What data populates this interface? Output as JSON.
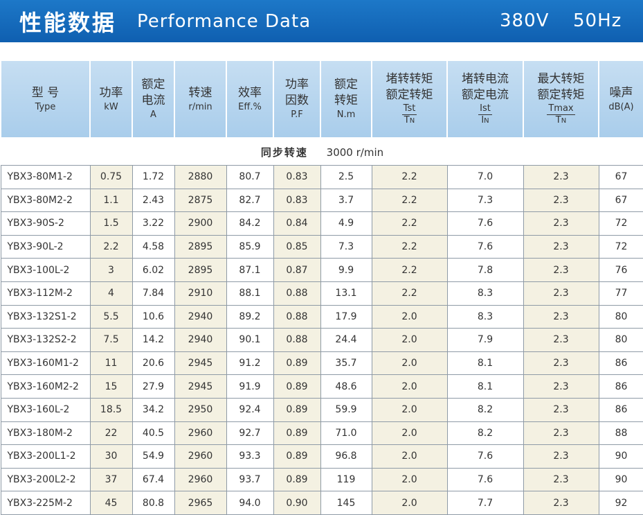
{
  "banner": {
    "title_cn": "性能数据",
    "title_en": "Performance Data",
    "voltage": "380V",
    "frequency": "50Hz"
  },
  "header": {
    "type_cn": "型  号",
    "type_en": "Type",
    "power_cn": "功率",
    "power_unit": "kW",
    "current_cn1": "额定",
    "current_cn2": "电流",
    "current_unit": "A",
    "speed_cn": "转速",
    "speed_unit": "r/min",
    "eff_cn": "效率",
    "eff_unit": "Eff.%",
    "pf_cn1": "功率",
    "pf_cn2": "因数",
    "pf_unit": "P.F",
    "torque_cn1": "额定",
    "torque_cn2": "转矩",
    "torque_unit": "N.m",
    "lrt_cn1": "堵转转矩",
    "lrt_cn2": "额定转矩",
    "lrt_num": "Tst",
    "lrt_den": "TN",
    "lrc_cn1": "堵转电流",
    "lrc_cn2": "额定电流",
    "lrc_num": "Ist",
    "lrc_den": "IN",
    "bdt_cn1": "最大转矩",
    "bdt_cn2": "额定转矩",
    "bdt_num": "Tmax",
    "bdt_den": "TN",
    "noise_cn": "噪声",
    "noise_unit": "dB(A)"
  },
  "section": {
    "label": "同步转速",
    "value": "3000 r/min"
  },
  "rows": [
    [
      "YBX3-80M1-2",
      "0.75",
      "1.72",
      "2880",
      "80.7",
      "0.83",
      "2.5",
      "2.2",
      "7.0",
      "2.3",
      "67"
    ],
    [
      "YBX3-80M2-2",
      "1.1",
      "2.43",
      "2875",
      "82.7",
      "0.83",
      "3.7",
      "2.2",
      "7.3",
      "2.3",
      "67"
    ],
    [
      "YBX3-90S-2",
      "1.5",
      "3.22",
      "2900",
      "84.2",
      "0.84",
      "4.9",
      "2.2",
      "7.6",
      "2.3",
      "72"
    ],
    [
      "YBX3-90L-2",
      "2.2",
      "4.58",
      "2895",
      "85.9",
      "0.85",
      "7.3",
      "2.2",
      "7.6",
      "2.3",
      "72"
    ],
    [
      "YBX3-100L-2",
      "3",
      "6.02",
      "2895",
      "87.1",
      "0.87",
      "9.9",
      "2.2",
      "7.8",
      "2.3",
      "76"
    ],
    [
      "YBX3-112M-2",
      "4",
      "7.84",
      "2910",
      "88.1",
      "0.88",
      "13.1",
      "2.2",
      "8.3",
      "2.3",
      "77"
    ],
    [
      "YBX3-132S1-2",
      "5.5",
      "10.6",
      "2940",
      "89.2",
      "0.88",
      "17.9",
      "2.0",
      "8.3",
      "2.3",
      "80"
    ],
    [
      "YBX3-132S2-2",
      "7.5",
      "14.2",
      "2940",
      "90.1",
      "0.88",
      "24.4",
      "2.0",
      "7.9",
      "2.3",
      "80"
    ],
    [
      "YBX3-160M1-2",
      "11",
      "20.6",
      "2945",
      "91.2",
      "0.89",
      "35.7",
      "2.0",
      "8.1",
      "2.3",
      "86"
    ],
    [
      "YBX3-160M2-2",
      "15",
      "27.9",
      "2945",
      "91.9",
      "0.89",
      "48.6",
      "2.0",
      "8.1",
      "2.3",
      "86"
    ],
    [
      "YBX3-160L-2",
      "18.5",
      "34.2",
      "2950",
      "92.4",
      "0.89",
      "59.9",
      "2.0",
      "8.2",
      "2.3",
      "86"
    ],
    [
      "YBX3-180M-2",
      "22",
      "40.5",
      "2960",
      "92.7",
      "0.89",
      "71.0",
      "2.0",
      "8.2",
      "2.3",
      "88"
    ],
    [
      "YBX3-200L1-2",
      "30",
      "54.9",
      "2960",
      "93.3",
      "0.89",
      "96.8",
      "2.0",
      "7.6",
      "2.3",
      "90"
    ],
    [
      "YBX3-200L2-2",
      "37",
      "67.4",
      "2960",
      "93.7",
      "0.89",
      "119",
      "2.0",
      "7.6",
      "2.3",
      "90"
    ],
    [
      "YBX3-225M-2",
      "45",
      "80.8",
      "2965",
      "94.0",
      "0.90",
      "145",
      "2.0",
      "7.7",
      "2.3",
      "92"
    ]
  ],
  "colors": {
    "banner": "#1369bb",
    "header_bg": "#b7d6ef",
    "shaded_cell": "#f4f1e2",
    "grid": "#8e9aa6"
  }
}
